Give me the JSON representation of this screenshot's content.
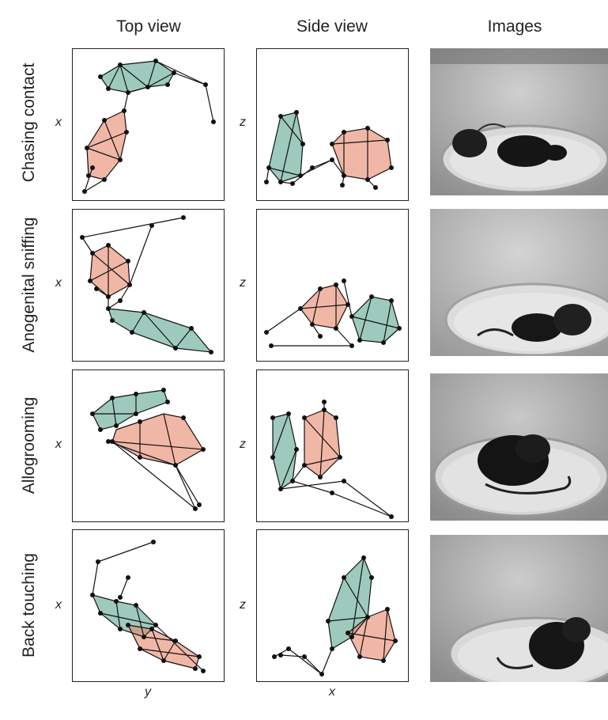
{
  "columns": [
    "Top view",
    "Side view",
    "Images"
  ],
  "rows": [
    "Chasing contact",
    "Anogenital sniffing",
    "Allogrooming",
    "Back touching"
  ],
  "axes": {
    "top_view_y": "x",
    "side_view_y": "z",
    "top_view_x": "y",
    "side_view_x": "x"
  },
  "colors": {
    "green": "#4f9e86",
    "orange": "#e8876a",
    "line": "#111111"
  },
  "images": [
    "mouse-photo",
    "mouse-photo",
    "mouse-photo",
    "mouse-photo"
  ]
}
